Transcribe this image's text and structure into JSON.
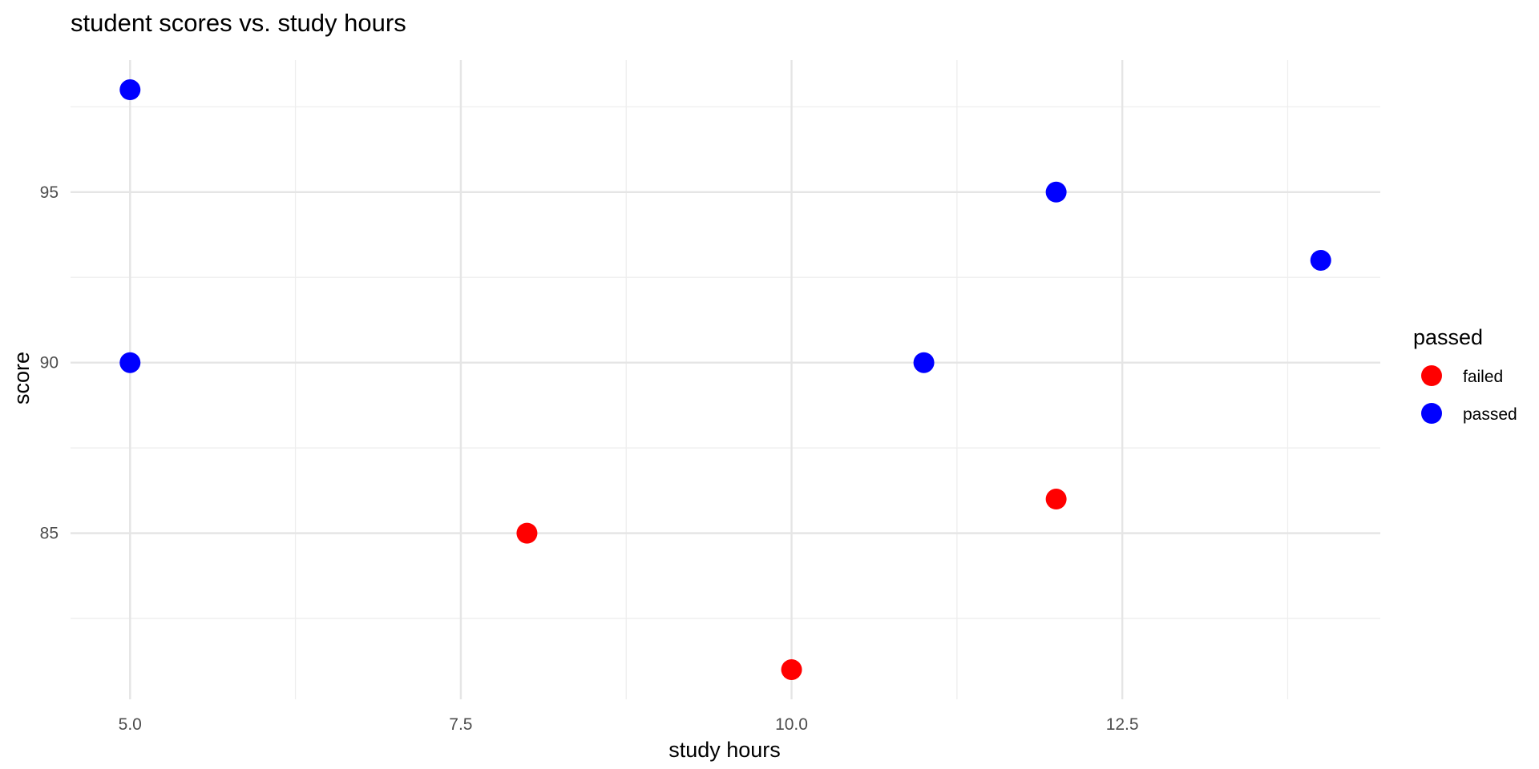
{
  "chart_data": {
    "type": "scatter",
    "title": "student scores vs. study hours",
    "xlabel": "study hours",
    "ylabel": "score",
    "xlim": [
      4.55,
      14.45
    ],
    "ylim": [
      80.13,
      98.87
    ],
    "x_ticks": [
      5.0,
      7.5,
      10.0,
      12.5
    ],
    "x_tick_labels": [
      "5.0",
      "7.5",
      "10.0",
      "12.5"
    ],
    "x_minor_ticks": [
      6.25,
      8.75,
      11.25,
      13.75
    ],
    "y_ticks": [
      85,
      90,
      95
    ],
    "y_tick_labels": [
      "85",
      "90",
      "95"
    ],
    "y_minor_ticks": [
      82.5,
      87.5,
      92.5,
      97.5
    ],
    "grid": true,
    "legend": {
      "title": "passed",
      "position": "right",
      "entries": [
        {
          "label": "failed",
          "color": "#ff0000"
        },
        {
          "label": "passed",
          "color": "#0000ff"
        }
      ]
    },
    "series": [
      {
        "name": "failed",
        "color": "#ff0000",
        "points": [
          {
            "x": 8,
            "y": 85
          },
          {
            "x": 10,
            "y": 81
          },
          {
            "x": 12,
            "y": 86
          }
        ]
      },
      {
        "name": "passed",
        "color": "#0000ff",
        "points": [
          {
            "x": 5,
            "y": 98
          },
          {
            "x": 5,
            "y": 90
          },
          {
            "x": 11,
            "y": 90
          },
          {
            "x": 12,
            "y": 95
          },
          {
            "x": 14,
            "y": 93
          }
        ]
      }
    ]
  }
}
